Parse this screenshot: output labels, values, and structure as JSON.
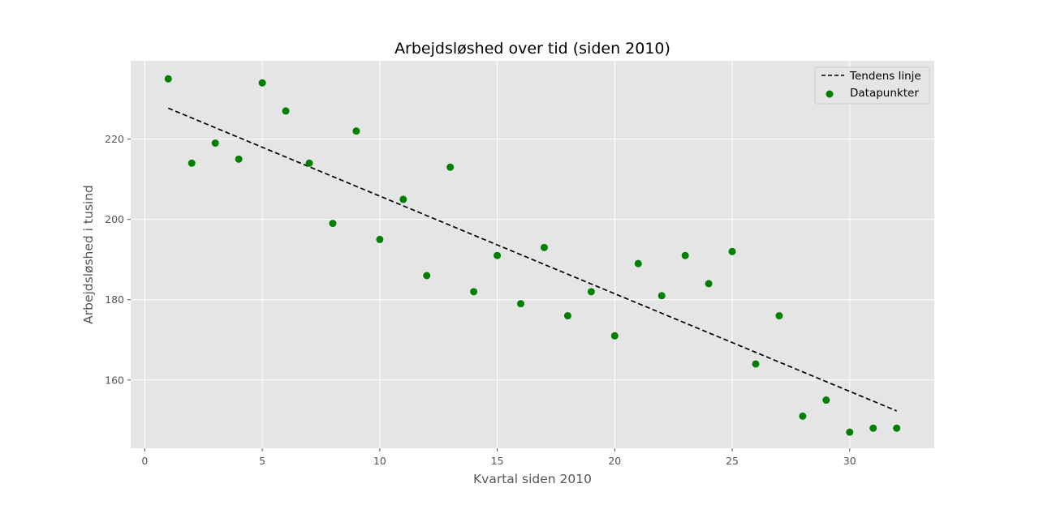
{
  "chart_data": {
    "type": "scatter",
    "title": "Arbejdsløshed over tid (siden 2010)",
    "xlabel": "Kvartal siden 2010",
    "ylabel": "Arbejdsløshed i tusind",
    "xlim": [
      -0.6,
      33.6
    ],
    "ylim": [
      143.0,
      239.5
    ],
    "x_ticks": [
      0,
      5,
      10,
      15,
      20,
      25,
      30
    ],
    "y_ticks": [
      160,
      180,
      200,
      220
    ],
    "grid": true,
    "legend_position": "top-right",
    "series": [
      {
        "name": "Datapunkter",
        "kind": "scatter",
        "color": "#008000",
        "x": [
          1,
          2,
          3,
          4,
          5,
          6,
          7,
          8,
          9,
          10,
          11,
          12,
          13,
          14,
          15,
          16,
          17,
          18,
          19,
          20,
          21,
          22,
          23,
          24,
          25,
          26,
          27,
          28,
          29,
          30,
          31,
          32
        ],
        "y": [
          235,
          214,
          219,
          215,
          234,
          227,
          214,
          199,
          222,
          195,
          205,
          186,
          213,
          182,
          191,
          179,
          193,
          176,
          182,
          171,
          189,
          181,
          191,
          184,
          192,
          164,
          176,
          151,
          155,
          147,
          148,
          148
        ]
      },
      {
        "name": "Tendens linje",
        "kind": "line",
        "style": "dashed",
        "color": "#000000",
        "x": [
          1,
          32
        ],
        "y": [
          227.7,
          152.3
        ]
      }
    ]
  }
}
